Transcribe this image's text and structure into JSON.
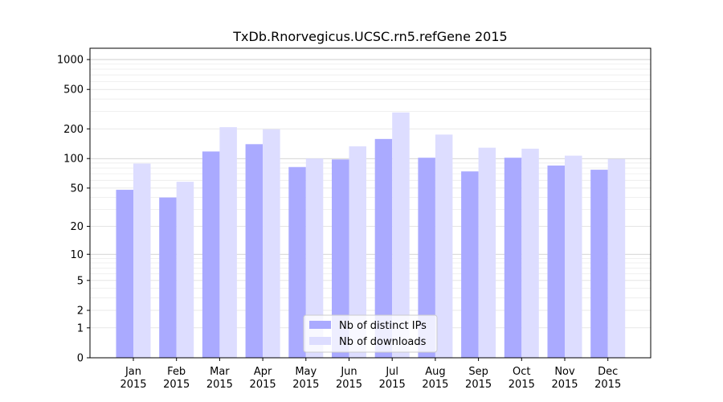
{
  "chart_data": {
    "type": "bar",
    "title": "TxDb.Rnorvegicus.UCSC.rn5.refGene 2015",
    "xlabel": "",
    "ylabel": "",
    "y_scale": "log(1+y)",
    "ylim": [
      0,
      1300
    ],
    "y_ticks": [
      0,
      1,
      2,
      5,
      10,
      20,
      50,
      100,
      200,
      500,
      1000
    ],
    "grid": true,
    "legend_position": "bottom-center",
    "categories": [
      {
        "month": "Jan",
        "year": "2015"
      },
      {
        "month": "Feb",
        "year": "2015"
      },
      {
        "month": "Mar",
        "year": "2015"
      },
      {
        "month": "Apr",
        "year": "2015"
      },
      {
        "month": "May",
        "year": "2015"
      },
      {
        "month": "Jun",
        "year": "2015"
      },
      {
        "month": "Jul",
        "year": "2015"
      },
      {
        "month": "Aug",
        "year": "2015"
      },
      {
        "month": "Sep",
        "year": "2015"
      },
      {
        "month": "Oct",
        "year": "2015"
      },
      {
        "month": "Nov",
        "year": "2015"
      },
      {
        "month": "Dec",
        "year": "2015"
      }
    ],
    "series": [
      {
        "name": "Nb of distinct IPs",
        "color": "#aaaaff",
        "values": [
          48,
          40,
          118,
          140,
          82,
          98,
          158,
          102,
          74,
          102,
          85,
          77
        ]
      },
      {
        "name": "Nb of downloads",
        "color": "#ddddff",
        "values": [
          89,
          58,
          208,
          198,
          100,
          133,
          293,
          175,
          129,
          126,
          107,
          99
        ]
      }
    ]
  }
}
